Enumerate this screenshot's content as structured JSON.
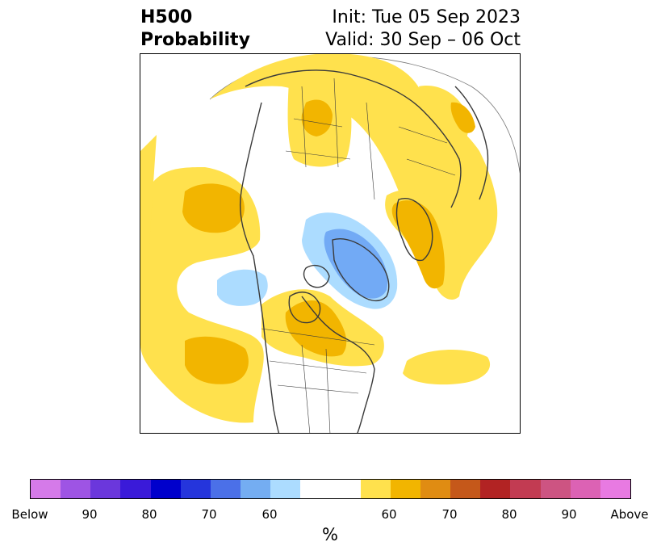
{
  "header": {
    "title_line1": "H500",
    "title_line2": "Probability",
    "init_text": "Init: Tue 05 Sep 2023",
    "valid_text": "Valid: 30 Sep – 06 Oct"
  },
  "map": {
    "projection": "north-polar-stereographic",
    "colors": {
      "above_50_60": "#ffe14d",
      "above_60_70": "#f2b500",
      "below_50_60": "#acdcff",
      "below_60_70": "#72aaf5",
      "land_outline": "#3a3a3a",
      "neutral": "#ffffff"
    }
  },
  "colorbar": {
    "colors": [
      "#d57ae9",
      "#9e54e4",
      "#6b37dc",
      "#3a1ad9",
      "#0000cc",
      "#2535dc",
      "#4b70e8",
      "#74adf2",
      "#acdcff",
      "#ffffff",
      "#ffe14d",
      "#f2b500",
      "#e08c12",
      "#c5581a",
      "#b22323",
      "#c23b52",
      "#cd5482",
      "#dc62b4",
      "#e87ae2"
    ],
    "labels": [
      "Below",
      "90",
      "80",
      "70",
      "60",
      "60",
      "70",
      "80",
      "90",
      "Above"
    ],
    "unit": "%"
  }
}
